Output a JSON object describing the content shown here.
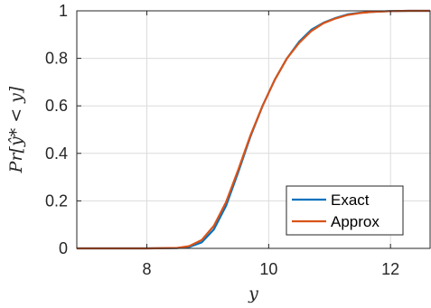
{
  "chart_data": {
    "type": "line",
    "xlabel": "y",
    "ylabel": "Pr[ŷ* < y]",
    "xlim": [
      6.85,
      12.65
    ],
    "ylim": [
      0,
      1
    ],
    "x_ticks": [
      "8",
      "10",
      "12"
    ],
    "y_ticks": [
      "0",
      "0.2",
      "0.4",
      "0.6",
      "0.8",
      "1"
    ],
    "grid": true,
    "legend": "bottom-right",
    "series": [
      {
        "name": "Exact",
        "color": "#0072BD",
        "x": [
          6.85,
          8.0,
          8.5,
          8.7,
          8.9,
          9.1,
          9.3,
          9.5,
          9.7,
          9.9,
          10.1,
          10.3,
          10.5,
          10.7,
          10.9,
          11.1,
          11.3,
          11.5,
          11.7,
          12.0,
          12.3,
          12.65
        ],
        "y": [
          0,
          0,
          0.001,
          0.006,
          0.025,
          0.08,
          0.18,
          0.32,
          0.47,
          0.6,
          0.71,
          0.8,
          0.87,
          0.92,
          0.95,
          0.97,
          0.985,
          0.992,
          0.996,
          0.999,
          1.0,
          1.0
        ]
      },
      {
        "name": "Approx",
        "color": "#D95319",
        "x": [
          6.85,
          8.0,
          8.5,
          8.7,
          8.9,
          9.1,
          9.3,
          9.5,
          9.7,
          9.9,
          10.1,
          10.3,
          10.5,
          10.7,
          10.9,
          11.1,
          11.3,
          11.5,
          11.7,
          12.0,
          12.3,
          12.65
        ],
        "y": [
          0,
          0,
          0.002,
          0.01,
          0.035,
          0.095,
          0.195,
          0.33,
          0.475,
          0.6,
          0.71,
          0.8,
          0.865,
          0.915,
          0.948,
          0.968,
          0.983,
          0.991,
          0.996,
          0.999,
          1.0,
          1.0
        ]
      }
    ]
  }
}
